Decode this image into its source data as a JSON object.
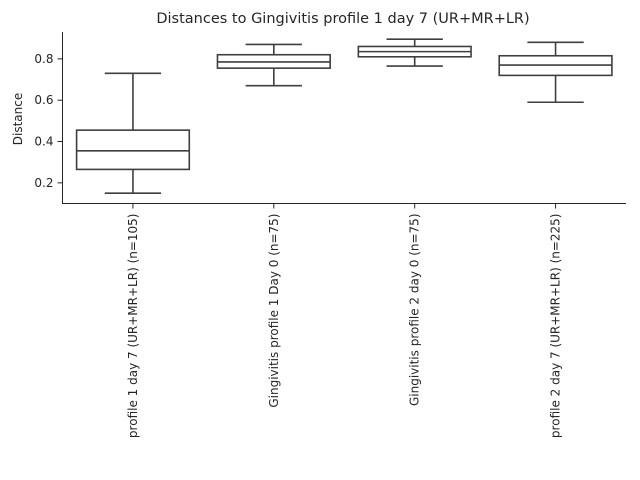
{
  "chart_data": {
    "type": "box",
    "title": "Distances to Gingivitis profile 1 day 7 (UR+MR+LR)",
    "xlabel": "",
    "ylabel": "Distance",
    "ylim": [
      0.1,
      0.93
    ],
    "yticks": [
      0.2,
      0.4,
      0.6,
      0.8
    ],
    "ytick_labels": [
      "0.2",
      "0.4",
      "0.6",
      "0.8"
    ],
    "grid": false,
    "legend": "none",
    "colors": {
      "box_edge": "#3f3f3f",
      "box_fill": "#ffffff",
      "axis": "#262626"
    },
    "categories": [
      "profile 1 day 7 (UR+MR+LR) (n=105)",
      "Gingivitis profile 1 Day 0 (n=75)",
      "Gingivitis profile 2 day 0 (n=75)",
      "profile 2 day 7 (UR+MR+LR) (n=225)"
    ],
    "boxes": [
      {
        "whisker_low": 0.15,
        "q1": 0.265,
        "median": 0.355,
        "q3": 0.455,
        "whisker_high": 0.73
      },
      {
        "whisker_low": 0.67,
        "q1": 0.755,
        "median": 0.785,
        "q3": 0.82,
        "whisker_high": 0.87
      },
      {
        "whisker_low": 0.765,
        "q1": 0.81,
        "median": 0.835,
        "q3": 0.86,
        "whisker_high": 0.895
      },
      {
        "whisker_low": 0.59,
        "q1": 0.72,
        "median": 0.77,
        "q3": 0.815,
        "whisker_high": 0.88
      }
    ]
  }
}
